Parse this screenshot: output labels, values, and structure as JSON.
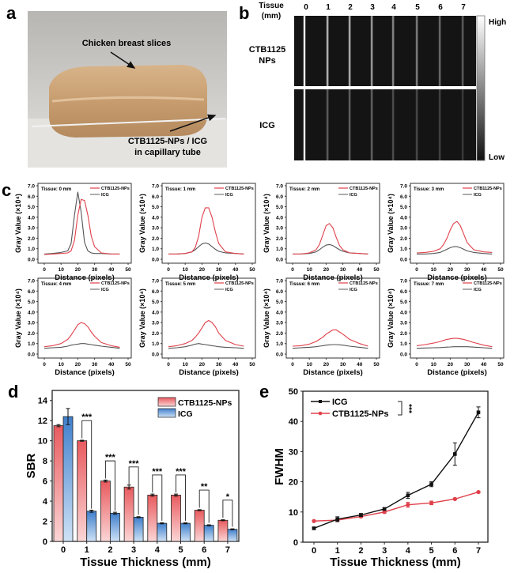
{
  "panel_a": {
    "label": "a",
    "annotation_top": "Chicken breast slices",
    "annotation_bottom_1": "CTB1125-NPs / ICG",
    "annotation_bottom_2": "in capillary tube"
  },
  "panel_b": {
    "label": "b",
    "tissue_label_1": "Tissue",
    "tissue_label_2": "(mm)",
    "lanes": [
      "0",
      "1",
      "2",
      "3",
      "4",
      "5",
      "6",
      "7"
    ],
    "row_ctb_1": "CTB1125",
    "row_ctb_2": "NPs",
    "row_icg": "ICG",
    "colorbar_high": "High",
    "colorbar_low": "Low"
  },
  "panel_c": {
    "label": "c"
  },
  "colors": {
    "ctb": "#e0404a",
    "icg": "#333333",
    "bar_red": "#e85a5e",
    "bar_blue": "#4a8ad0"
  },
  "chart_data": [
    {
      "panel": "c",
      "type": "line",
      "xlabel": "Distance (pixels)",
      "ylabel": "Gray Value (×10⁴)",
      "xlim": [
        0,
        50
      ],
      "ylim": [
        0,
        7
      ],
      "xticks": [
        "0",
        "10",
        "20",
        "30",
        "40",
        "50"
      ],
      "yticks": [
        "0.0",
        "1.0",
        "2.0",
        "3.0",
        "4.0",
        "5.0",
        "6.0",
        "7.0"
      ],
      "legend": [
        "CTB1125-NPs",
        "ICG"
      ],
      "x": [
        0,
        5,
        10,
        14,
        16,
        18,
        20,
        22,
        24,
        26,
        28,
        30,
        34,
        40,
        45
      ],
      "subplots": [
        {
          "title": "Tissue: 0 mm",
          "ctb": [
            0.45,
            0.5,
            0.55,
            0.6,
            0.8,
            1.8,
            4.2,
            5.7,
            5.6,
            4.2,
            2.2,
            1.2,
            0.6,
            0.5,
            0.5
          ],
          "icg": [
            0.5,
            0.55,
            0.65,
            0.8,
            1.5,
            4.2,
            6.4,
            4.5,
            1.6,
            0.8,
            0.6,
            0.55,
            0.55,
            0.5,
            0.5
          ]
        },
        {
          "title": "Tissue: 1 mm",
          "ctb": [
            0.5,
            0.5,
            0.55,
            0.7,
            1.1,
            2.2,
            4.0,
            4.9,
            4.9,
            4.0,
            2.6,
            1.5,
            0.7,
            0.55,
            0.5
          ],
          "icg": [
            0.5,
            0.5,
            0.55,
            0.7,
            0.9,
            1.2,
            1.45,
            1.55,
            1.45,
            1.2,
            0.95,
            0.75,
            0.6,
            0.55,
            0.5
          ]
        },
        {
          "title": "Tissue: 2 mm",
          "ctb": [
            0.5,
            0.5,
            0.6,
            0.9,
            1.4,
            2.3,
            3.2,
            3.4,
            3.0,
            2.1,
            1.3,
            0.9,
            0.6,
            0.55,
            0.5
          ],
          "icg": [
            0.5,
            0.5,
            0.55,
            0.7,
            0.9,
            1.15,
            1.35,
            1.4,
            1.3,
            1.1,
            0.9,
            0.75,
            0.6,
            0.55,
            0.5
          ]
        },
        {
          "title": "Tissue: 3 mm",
          "ctb": [
            0.6,
            0.65,
            0.75,
            1.0,
            1.4,
            2.0,
            2.8,
            3.4,
            3.6,
            3.2,
            2.4,
            1.6,
            0.9,
            0.7,
            0.65
          ],
          "icg": [
            0.5,
            0.5,
            0.55,
            0.65,
            0.8,
            0.95,
            1.1,
            1.2,
            1.2,
            1.1,
            0.95,
            0.8,
            0.65,
            0.55,
            0.5
          ]
        },
        {
          "title": "Tissue: 4 mm",
          "ctb": [
            0.7,
            0.8,
            1.0,
            1.4,
            1.8,
            2.3,
            2.8,
            3.0,
            2.9,
            2.6,
            2.1,
            1.7,
            1.1,
            0.8,
            0.65
          ],
          "icg": [
            0.55,
            0.6,
            0.65,
            0.75,
            0.85,
            0.9,
            0.95,
            1.0,
            1.0,
            0.95,
            0.9,
            0.85,
            0.75,
            0.65,
            0.55
          ]
        },
        {
          "title": "Tissue: 5 mm",
          "ctb": [
            0.7,
            0.8,
            1.0,
            1.3,
            1.6,
            2.0,
            2.5,
            3.0,
            3.2,
            3.0,
            2.6,
            2.0,
            1.3,
            0.9,
            0.75
          ],
          "icg": [
            0.55,
            0.6,
            0.7,
            0.85,
            0.95,
            1.0,
            0.95,
            0.9,
            0.85,
            0.8,
            0.75,
            0.7,
            0.65,
            0.6,
            0.55
          ]
        },
        {
          "title": "Tissue: 6 mm",
          "ctb": [
            0.75,
            0.8,
            0.95,
            1.2,
            1.4,
            1.6,
            1.9,
            2.1,
            2.3,
            2.3,
            2.1,
            1.9,
            1.4,
            1.0,
            0.75
          ],
          "icg": [
            0.55,
            0.6,
            0.65,
            0.7,
            0.75,
            0.8,
            0.85,
            0.88,
            0.9,
            0.9,
            0.88,
            0.85,
            0.75,
            0.65,
            0.55
          ]
        },
        {
          "title": "Tissue: 7 mm",
          "ctb": [
            0.8,
            0.9,
            1.05,
            1.2,
            1.3,
            1.4,
            1.45,
            1.5,
            1.5,
            1.45,
            1.4,
            1.3,
            1.1,
            0.85,
            0.7
          ],
          "icg": [
            0.55,
            0.58,
            0.6,
            0.62,
            0.64,
            0.66,
            0.68,
            0.7,
            0.7,
            0.7,
            0.7,
            0.7,
            0.66,
            0.6,
            0.55
          ]
        }
      ]
    },
    {
      "panel": "d",
      "label": "d",
      "type": "bar",
      "xlabel": "Tissue Thickness (mm)",
      "ylabel": "SBR",
      "categories": [
        "0",
        "1",
        "2",
        "3",
        "4",
        "5",
        "6",
        "7"
      ],
      "ylim": [
        0,
        15
      ],
      "yticks": [
        "0",
        "2",
        "4",
        "6",
        "8",
        "10",
        "12",
        "14"
      ],
      "legend": "top-right",
      "series": [
        {
          "name": "CTB1125-NPs",
          "values": [
            11.5,
            10.0,
            6.0,
            5.4,
            4.6,
            4.6,
            3.1,
            2.1
          ],
          "errors": [
            0.1,
            0.05,
            0.1,
            0.2,
            0.1,
            0.1,
            0.05,
            0.05
          ]
        },
        {
          "name": "ICG",
          "values": [
            12.4,
            3.0,
            2.8,
            2.4,
            1.8,
            1.8,
            1.6,
            1.2
          ],
          "errors": [
            0.8,
            0.1,
            0.1,
            0.05,
            0.05,
            0.05,
            0.05,
            0.05
          ]
        }
      ],
      "significance": [
        "",
        "***",
        "***",
        "***",
        "***",
        "***",
        "**",
        "*"
      ]
    },
    {
      "panel": "e",
      "label": "e",
      "type": "line",
      "xlabel": "Tissue Thickness (mm)",
      "ylabel": "FWHM",
      "x": [
        0,
        1,
        2,
        3,
        4,
        5,
        6,
        7
      ],
      "xticks": [
        "0",
        "1",
        "2",
        "3",
        "4",
        "5",
        "6",
        "7"
      ],
      "ylim": [
        0,
        50
      ],
      "yticks": [
        "0",
        "10",
        "20",
        "30",
        "40",
        "50"
      ],
      "legend": "top-left",
      "series": [
        {
          "name": "ICG",
          "values": [
            4.6,
            7.6,
            9.0,
            11.0,
            15.5,
            19.2,
            29.2,
            43.0
          ],
          "errors": [
            0.3,
            0.8,
            0.5,
            0.4,
            1.0,
            0.8,
            3.7,
            1.8
          ]
        },
        {
          "name": "CTB1125-NPs",
          "values": [
            7.0,
            7.3,
            8.5,
            10.0,
            12.4,
            13.0,
            14.3,
            16.6
          ],
          "errors": [
            0.2,
            0.4,
            0.4,
            0.4,
            0.8,
            0.6,
            0.3,
            0.3
          ]
        }
      ],
      "significance": "***"
    }
  ]
}
